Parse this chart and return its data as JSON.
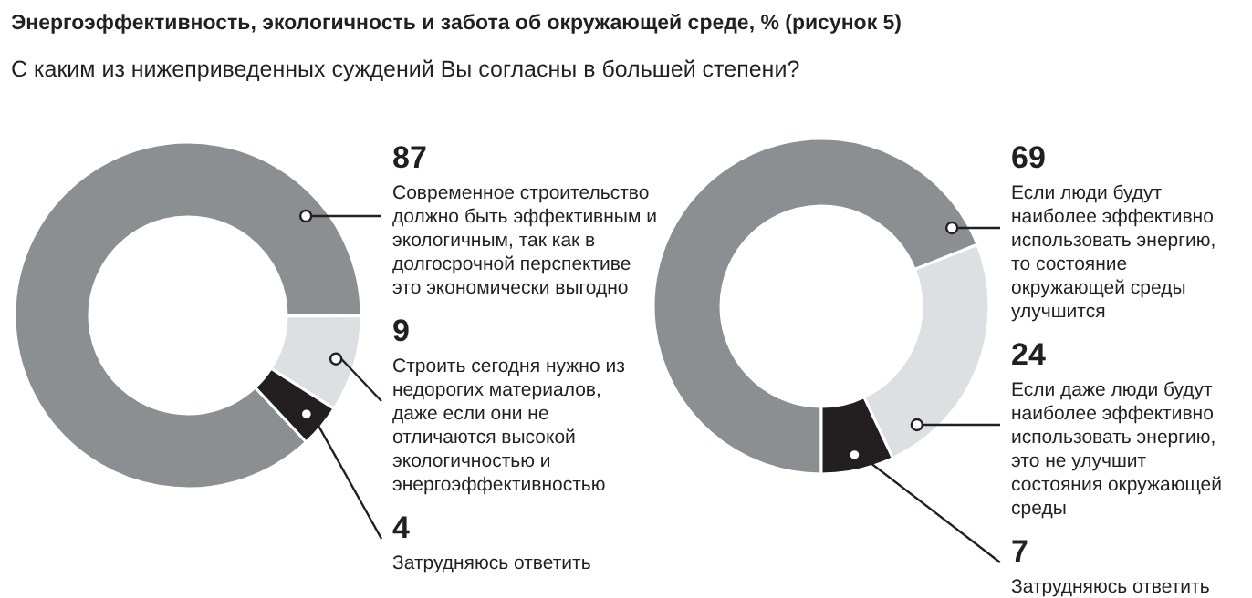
{
  "chart_data": [
    {
      "type": "donut",
      "title": "Энергоэффективность, экологичность и забота об окружающей среде, % (рисунок 5)",
      "subtitle": "С каким из нижеприведенных суждений Вы согласны в большей степени?",
      "categories": [
        "Современное строительство должно быть эффективным и экологичным, так как в долгосрочной перспективе это экономически выгодно",
        "Строить сегодня нужно из недорогих материалов, даже если они не отличаются высокой экологичностью и энергоэффективностью",
        "Затрудняюсь ответить"
      ],
      "values": [
        87,
        9,
        4
      ],
      "colors": [
        "#8c8f91",
        "#dde0e2",
        "#231f20"
      ],
      "data_labels": true
    },
    {
      "type": "donut",
      "categories": [
        "Если люди будут наиболее эффективно использовать энергию, то состояние окружающей среды улучшится",
        "Если даже люди будут наиболее эффективно использовать энергию, это не улучшит состояния окружающей среды",
        "Затрудняюсь ответить"
      ],
      "values": [
        69,
        24,
        7
      ],
      "colors": [
        "#8c8f91",
        "#dde0e2",
        "#231f20"
      ],
      "data_labels": true
    }
  ]
}
